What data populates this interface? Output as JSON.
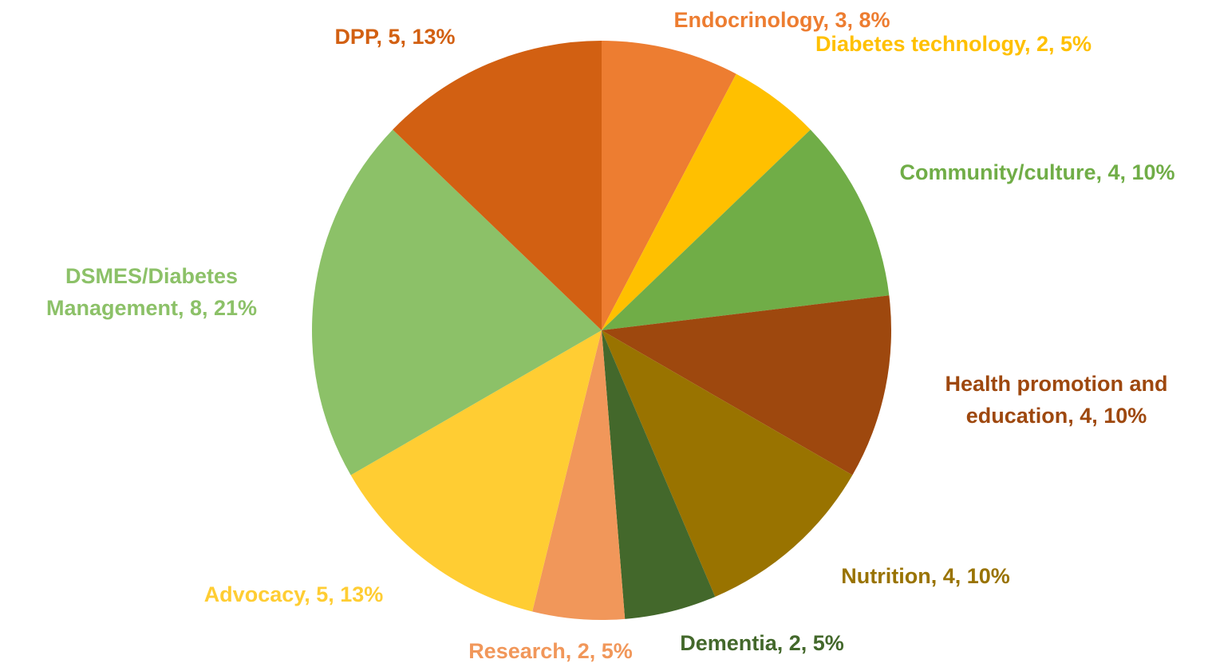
{
  "chart_data": {
    "type": "pie",
    "values": [
      3,
      2,
      4,
      4,
      4,
      2,
      2,
      5,
      8,
      5
    ],
    "value_labels": [
      "Endocrinology, 3, 8%",
      "Diabetes technology, 2, 5%",
      "Community/culture, 4, 10%",
      "Health promotion and education, 4, 10%",
      "Nutrition, 4, 10%",
      "Dementia, 2, 5%",
      "Research, 2, 5%",
      "Advocacy, 5, 13%",
      "DSMES/Diabetes Management, 8, 21%",
      "DPP, 5, 13%"
    ],
    "colors": [
      "#ED7D31",
      "#FFC000",
      "#70AD47",
      "#9E480E",
      "#997300",
      "#43682B",
      "#F1975A",
      "#FFCD33",
      "#8CC168",
      "#D26012"
    ]
  }
}
